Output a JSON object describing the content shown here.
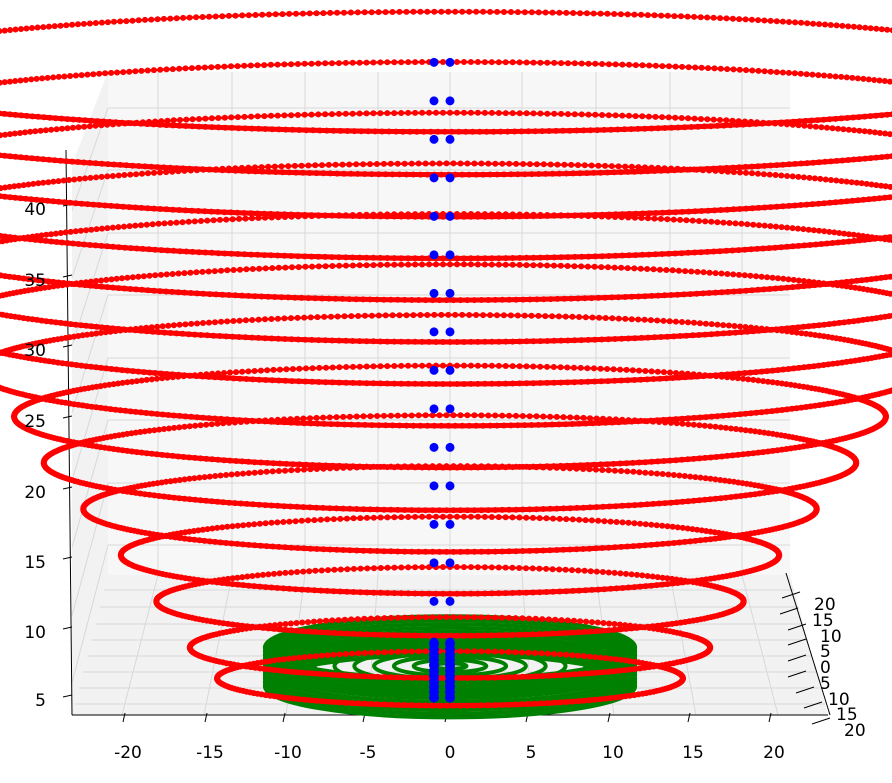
{
  "chart_data": {
    "type": "scatter",
    "projection": "3d",
    "title": "",
    "xlabel": "",
    "ylabel": "",
    "zlabel": "",
    "grid": true,
    "xlim": [
      -23,
      23
    ],
    "ylim": [
      -20,
      20
    ],
    "zlim": [
      3,
      45
    ],
    "x_ticks": [
      "-20",
      "-15",
      "-10",
      "-5",
      "0",
      "5",
      "10",
      "15",
      "20"
    ],
    "y_ticks": [
      "20",
      "15",
      "10",
      "5",
      "0",
      "5",
      "10",
      "15",
      "20"
    ],
    "z_ticks": [
      "5",
      "10",
      "15",
      "20",
      "25",
      "30",
      "35",
      "40"
    ],
    "series": [
      {
        "description": "helix spiral rings",
        "color": "#ff0000",
        "rings": [
          {
            "z": 4,
            "radius": 13
          },
          {
            "z": 6,
            "radius": 14
          },
          {
            "z": 9,
            "radius": 15
          },
          {
            "z": 12,
            "radius": 16
          },
          {
            "z": 15,
            "radius": 17
          },
          {
            "z": 18,
            "radius": 18
          },
          {
            "z": 21,
            "radius": 18.5
          },
          {
            "z": 24,
            "radius": 19.3
          },
          {
            "z": 27,
            "radius": 20
          },
          {
            "z": 30,
            "radius": 20.6
          },
          {
            "z": 33,
            "radius": 21.2
          },
          {
            "z": 36,
            "radius": 21.8
          },
          {
            "z": 39,
            "radius": 22.4
          },
          {
            "z": 42,
            "radius": 22.8
          },
          {
            "z": 45,
            "radius": 23
          }
        ]
      },
      {
        "description": "base disc",
        "color": "#008000",
        "z_range": [
          3.5,
          6
        ],
        "radius": 11
      },
      {
        "description": "center column points",
        "color": "#0000ff",
        "x": [
          -1,
          0
        ],
        "z": [
          4,
          5,
          6,
          7,
          9,
          11.5,
          14,
          16.5,
          19,
          21.5,
          24,
          26.5,
          29,
          31.5,
          34,
          36.5,
          39,
          41.5,
          44
        ]
      }
    ]
  }
}
